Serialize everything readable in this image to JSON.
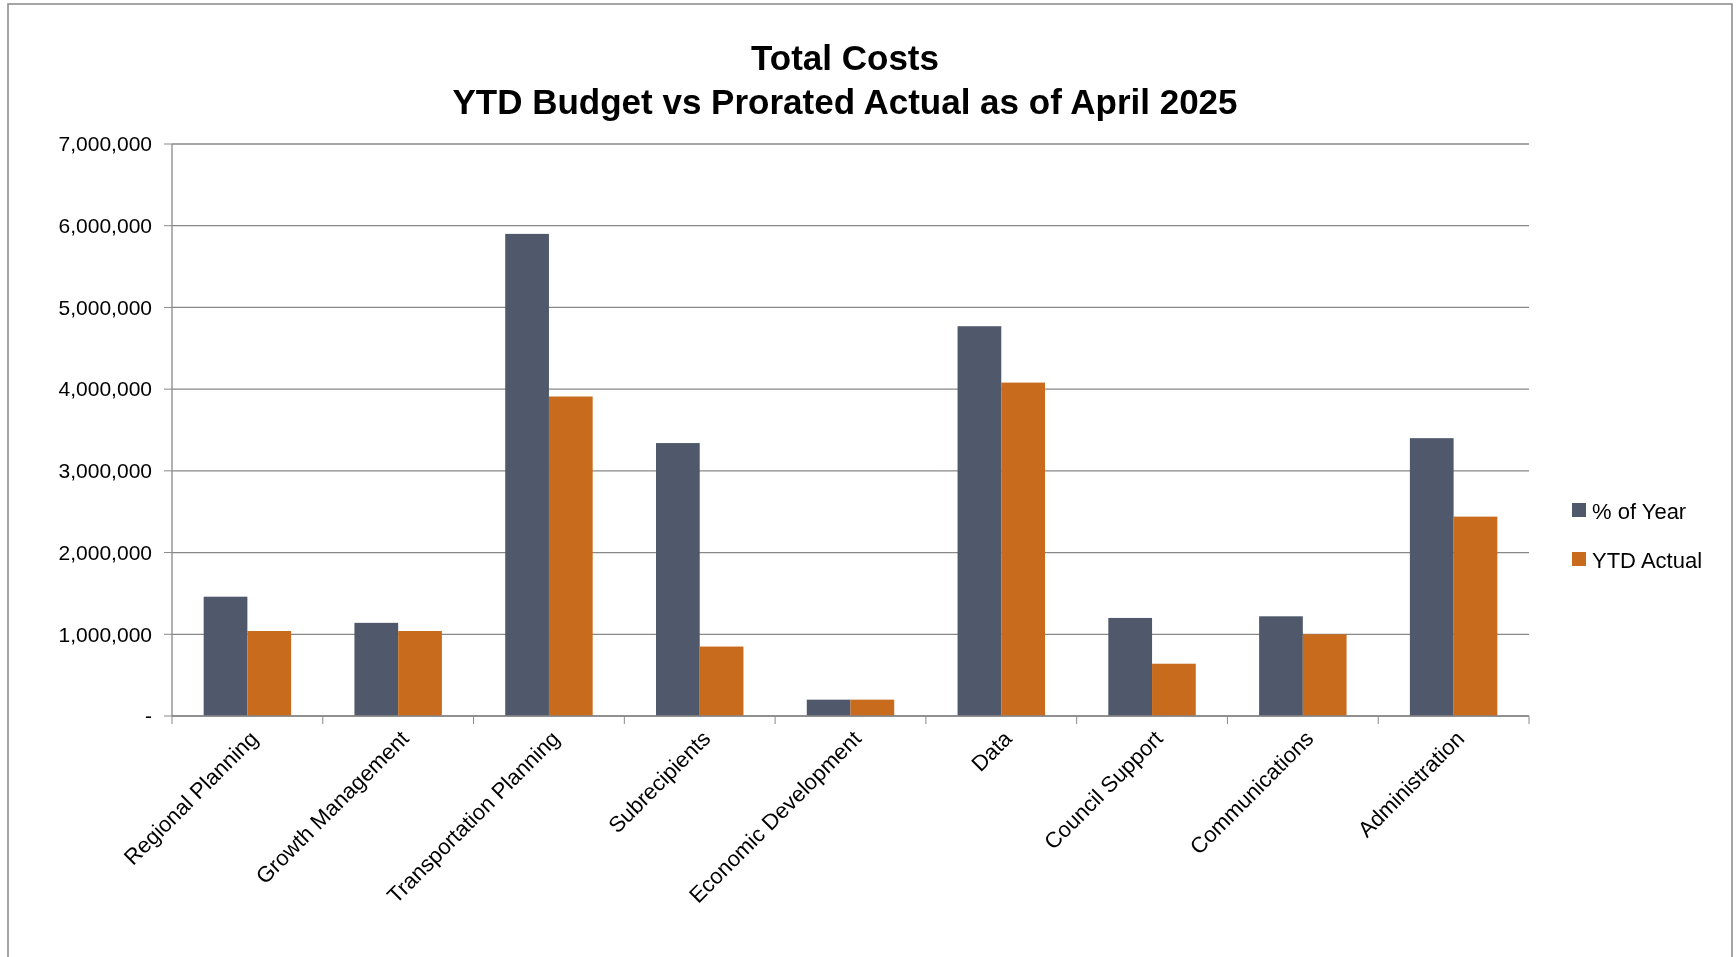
{
  "chart_data": {
    "type": "bar",
    "title": "Total Costs",
    "subtitle": "YTD Budget vs Prorated Actual as of April 2025",
    "categories": [
      "Regional Planning",
      "Growth Management",
      "Transportation Planning",
      "Subrecipients",
      "Economic Development",
      "Data",
      "Council Support",
      "Communications",
      "Administration"
    ],
    "series": [
      {
        "name": "% of Year",
        "color": "#4f596b",
        "values": [
          1460000,
          1140000,
          5900000,
          3340000,
          200000,
          4770000,
          1200000,
          1220000,
          3400000
        ]
      },
      {
        "name": "YTD Actual",
        "color": "#c96b1c",
        "values": [
          1040000,
          1040000,
          3910000,
          850000,
          200000,
          4080000,
          640000,
          1000000,
          2440000
        ]
      }
    ],
    "ylim": [
      0,
      7000000
    ],
    "yticks": [
      {
        "value": 0,
        "label": "-"
      },
      {
        "value": 1000000,
        "label": "1,000,000"
      },
      {
        "value": 2000000,
        "label": "2,000,000"
      },
      {
        "value": 3000000,
        "label": "3,000,000"
      },
      {
        "value": 4000000,
        "label": "4,000,000"
      },
      {
        "value": 5000000,
        "label": "5,000,000"
      },
      {
        "value": 6000000,
        "label": "6,000,000"
      },
      {
        "value": 7000000,
        "label": "7,000,000"
      }
    ],
    "grid": "y",
    "legend": "right"
  }
}
